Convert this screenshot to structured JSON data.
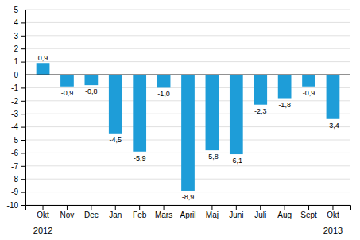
{
  "chart_data": {
    "type": "bar",
    "categories": [
      "Okt",
      "Nov",
      "Dec",
      "Jan",
      "Feb",
      "Mars",
      "April",
      "Maj",
      "Juni",
      "Juli",
      "Aug",
      "Sept",
      "Okt"
    ],
    "values": [
      0.9,
      -0.9,
      -0.8,
      -4.5,
      -5.9,
      -1.0,
      -8.9,
      -5.8,
      -6.1,
      -2.3,
      -1.8,
      -0.9,
      -3.4
    ],
    "value_labels": [
      "0,9",
      "-0,9",
      "-0,8",
      "-4,5",
      "-5,9",
      "-1,0",
      "-8,9",
      "-5,8",
      "-6,1",
      "-2,3",
      "-1,8",
      "-0,9",
      "-3,4"
    ],
    "data_labels": true,
    "color": "#1e9dd8",
    "ylim": [
      -10,
      5
    ],
    "yticks": [
      -10,
      -9,
      -8,
      -7,
      -6,
      -5,
      -4,
      -3,
      -2,
      -1,
      0,
      1,
      2,
      3,
      4,
      5
    ],
    "grid": true,
    "annotations": [
      "2012",
      "2013"
    ]
  }
}
